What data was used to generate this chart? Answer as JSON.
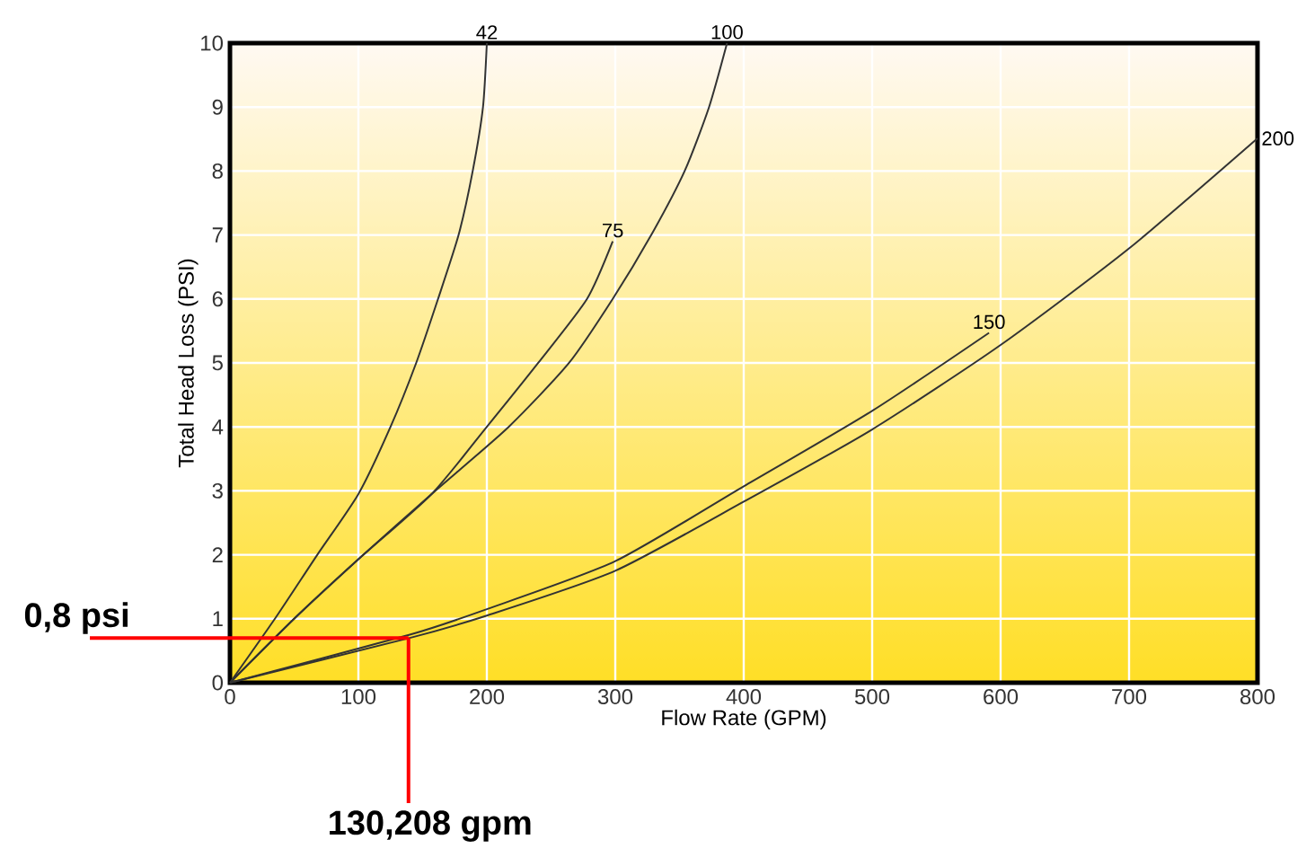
{
  "chart_data": {
    "type": "line",
    "xlabel": "Flow Rate (GPM)",
    "ylabel": "Total Head Loss (PSI)",
    "xlim": [
      0,
      800
    ],
    "ylim": [
      0,
      10
    ],
    "xticks": [
      0,
      100,
      200,
      300,
      400,
      500,
      600,
      700,
      800
    ],
    "yticks": [
      0,
      1,
      2,
      3,
      4,
      5,
      6,
      7,
      8,
      9,
      10
    ],
    "grid": true,
    "legend": false,
    "marker": "none",
    "line_style": "solid",
    "series": [
      {
        "name": "42",
        "color": "#333333",
        "x": [
          0,
          35,
          68,
          100,
          125,
          145,
          162,
          178,
          189,
          197,
          200
        ],
        "values": [
          0,
          1,
          2,
          2.95,
          4,
          5,
          6,
          7,
          8,
          9,
          10
        ]
      },
      {
        "name": "75",
        "color": "#333333",
        "x": [
          0,
          50,
          100,
          157,
          200,
          240,
          278,
          298
        ],
        "values": [
          0,
          1,
          1.93,
          2.95,
          4,
          5,
          6,
          6.9
        ]
      },
      {
        "name": "100",
        "color": "#333333",
        "x": [
          0,
          50,
          100,
          157,
          217,
          264,
          298,
          328,
          354,
          373,
          387
        ],
        "values": [
          0,
          1,
          1.93,
          2.95,
          4,
          5,
          6,
          7,
          8,
          9,
          10
        ]
      },
      {
        "name": "150",
        "color": "#333333",
        "x": [
          0,
          140,
          200,
          300,
          400,
          500,
          591
        ],
        "values": [
          0,
          0.75,
          1.15,
          1.9,
          3.07,
          4.25,
          5.47
        ]
      },
      {
        "name": "200",
        "color": "#333333",
        "x": [
          0,
          140,
          200,
          300,
          400,
          500,
          600,
          700,
          800
        ],
        "values": [
          0,
          0.7,
          1.05,
          1.75,
          2.83,
          3.96,
          5.28,
          6.79,
          8.51
        ]
      }
    ],
    "ref_lines": [
      {
        "axis": "y",
        "value": 0.7,
        "label": "0,8 psi",
        "color": "#ff0000"
      },
      {
        "axis": "x",
        "value": 139,
        "label": "130,208 gpm",
        "color": "#ff0000"
      }
    ]
  }
}
